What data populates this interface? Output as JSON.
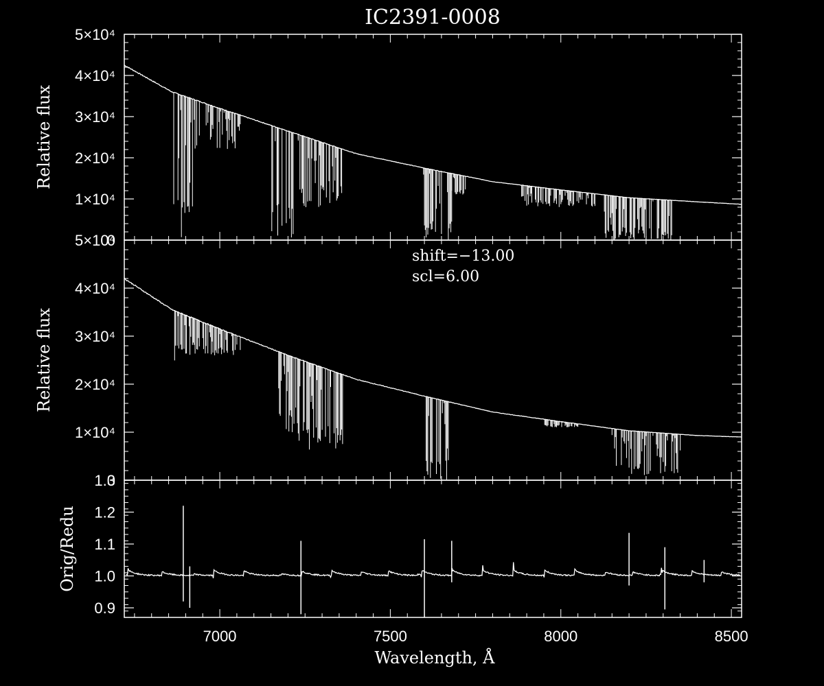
{
  "chart_data": {
    "type": "line",
    "title": "IC2391-0008",
    "xlabel": "Wavelength, Å",
    "x_range": [
      6720,
      8530
    ],
    "x_ticks": [
      7000,
      7500,
      8000,
      8500
    ],
    "x_tick_labels": [
      "7000",
      "7500",
      "8000",
      "8500"
    ],
    "panels": [
      {
        "id": "original",
        "ylabel": "Relative flux",
        "ylim": [
          0,
          50000
        ],
        "y_tick_labels": [
          "0",
          "1×10⁴",
          "2×10⁴",
          "3×10⁴",
          "4×10⁴",
          "5×10⁴"
        ],
        "continuum": [
          [
            6720,
            42500
          ],
          [
            6860,
            36000
          ],
          [
            7000,
            32000
          ],
          [
            7200,
            26500
          ],
          [
            7400,
            21000
          ],
          [
            7600,
            17500
          ],
          [
            7800,
            14200
          ],
          [
            8000,
            12200
          ],
          [
            8200,
            10300
          ],
          [
            8400,
            9300
          ],
          [
            8530,
            8700
          ]
        ],
        "absorption_bands": [
          {
            "from": 6860,
            "to": 6920,
            "min_flux": 0
          },
          {
            "from": 6920,
            "to": 7060,
            "min_flux": 22000
          },
          {
            "from": 7150,
            "to": 7230,
            "min_flux": 0
          },
          {
            "from": 7230,
            "to": 7360,
            "min_flux": 8000
          },
          {
            "from": 7595,
            "to": 7680,
            "min_flux": 0
          },
          {
            "from": 7680,
            "to": 7720,
            "min_flux": 11000
          },
          {
            "from": 7880,
            "to": 8100,
            "min_flux": 8000
          },
          {
            "from": 8120,
            "to": 8330,
            "min_flux": 0
          }
        ],
        "annotations": []
      },
      {
        "id": "reduced",
        "ylabel": "Relative flux",
        "ylim": [
          0,
          50000
        ],
        "y_tick_labels": [
          "0",
          "1×10⁴",
          "2×10⁴",
          "3×10⁴",
          "4×10⁴",
          "5×10⁴"
        ],
        "continuum": [
          [
            6720,
            42000
          ],
          [
            6860,
            35500
          ],
          [
            7000,
            31500
          ],
          [
            7200,
            26000
          ],
          [
            7400,
            21000
          ],
          [
            7600,
            17500
          ],
          [
            7800,
            14200
          ],
          [
            8000,
            12200
          ],
          [
            8200,
            10300
          ],
          [
            8400,
            9300
          ],
          [
            8530,
            9000
          ]
        ],
        "absorption_bands": [
          {
            "from": 6865,
            "to": 6875,
            "min_flux": 13000
          },
          {
            "from": 6875,
            "to": 7060,
            "min_flux": 26000
          },
          {
            "from": 7170,
            "to": 7230,
            "min_flux": 9000
          },
          {
            "from": 7230,
            "to": 7360,
            "min_flux": 6000
          },
          {
            "from": 7600,
            "to": 7670,
            "min_flux": 0
          },
          {
            "from": 7950,
            "to": 8050,
            "min_flux": 11000
          },
          {
            "from": 8150,
            "to": 8350,
            "min_flux": 1000
          }
        ],
        "annotations": [
          "shift=−13.00",
          "scl=6.00"
        ]
      },
      {
        "id": "ratio",
        "ylabel": "Orig/Redu",
        "ylim": [
          0.87,
          1.3
        ],
        "y_ticks": [
          0.9,
          1.0,
          1.1,
          1.2,
          1.3
        ],
        "y_tick_labels": [
          "0.9",
          "1.0",
          "1.1",
          "1.2",
          "1.3"
        ],
        "baseline": 1.005,
        "spike_wavelengths": [
          6730,
          6740,
          6820,
          6835,
          6890,
          6980,
          7065,
          7090,
          7150,
          7235,
          7325,
          7405,
          7490,
          7590,
          7680,
          7770,
          7860,
          7950,
          8040,
          8120,
          8200,
          8295,
          8380,
          8460
        ],
        "spikes": [
          {
            "x": 6893,
            "top": 1.22,
            "bottom": 0.92
          },
          {
            "x": 6912,
            "top": 1.03,
            "bottom": 0.9
          },
          {
            "x": 7238,
            "top": 1.11,
            "bottom": 0.88
          },
          {
            "x": 7600,
            "top": 1.115,
            "bottom": 0.87
          },
          {
            "x": 7680,
            "top": 1.11,
            "bottom": 0.98
          },
          {
            "x": 8200,
            "top": 1.135,
            "bottom": 0.97
          },
          {
            "x": 8305,
            "top": 1.09,
            "bottom": 0.895
          },
          {
            "x": 8420,
            "top": 1.05,
            "bottom": 0.98
          }
        ]
      }
    ]
  }
}
